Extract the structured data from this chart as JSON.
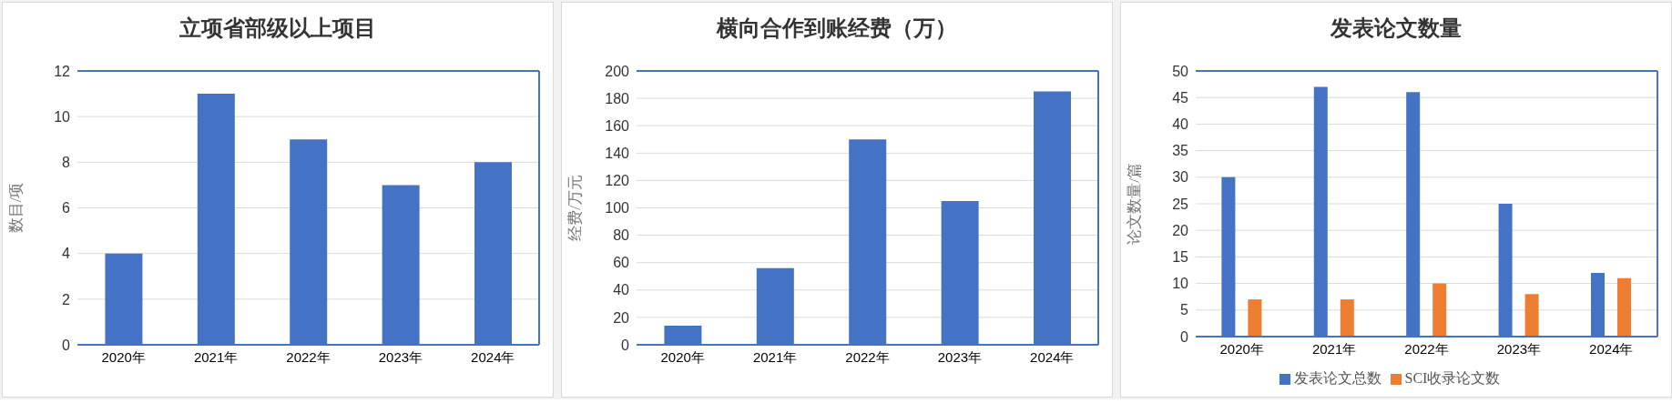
{
  "chart_data": [
    {
      "type": "bar",
      "title": "立项省部级以上项目",
      "ylabel": "数目/项",
      "categories": [
        "2020年",
        "2021年",
        "2022年",
        "2023年",
        "2024年"
      ],
      "values": [
        4,
        11,
        9,
        7,
        8
      ],
      "color": "#4472c4",
      "ylim": [
        0,
        12
      ],
      "yticks": [
        0,
        2,
        4,
        6,
        8,
        10,
        12
      ],
      "grid": "y",
      "legend": false
    },
    {
      "type": "bar",
      "title": "横向合作到账经费（万）",
      "ylabel": "经费/万元",
      "categories": [
        "2020年",
        "2021年",
        "2022年",
        "2023年",
        "2024年"
      ],
      "values": [
        14,
        56,
        150,
        105,
        185
      ],
      "color": "#4472c4",
      "ylim": [
        0,
        200
      ],
      "yticks": [
        0,
        20,
        40,
        60,
        80,
        100,
        120,
        140,
        160,
        180,
        200
      ],
      "grid": "y",
      "legend": false
    },
    {
      "type": "bar",
      "title": "发表论文数量",
      "ylabel": "论文数量/篇",
      "categories": [
        "2020年",
        "2021年",
        "2022年",
        "2023年",
        "2024年"
      ],
      "series": [
        {
          "name": "发表论文总数",
          "color": "#4472c4",
          "values": [
            30,
            47,
            46,
            25,
            12
          ]
        },
        {
          "name": "SCI收录论文数",
          "color": "#ed7d31",
          "values": [
            7,
            7,
            10,
            8,
            11
          ]
        }
      ],
      "ylim": [
        0,
        50
      ],
      "yticks": [
        0,
        5,
        10,
        15,
        20,
        25,
        30,
        35,
        40,
        45,
        50
      ],
      "grid": "y",
      "legend": "bottom"
    }
  ]
}
